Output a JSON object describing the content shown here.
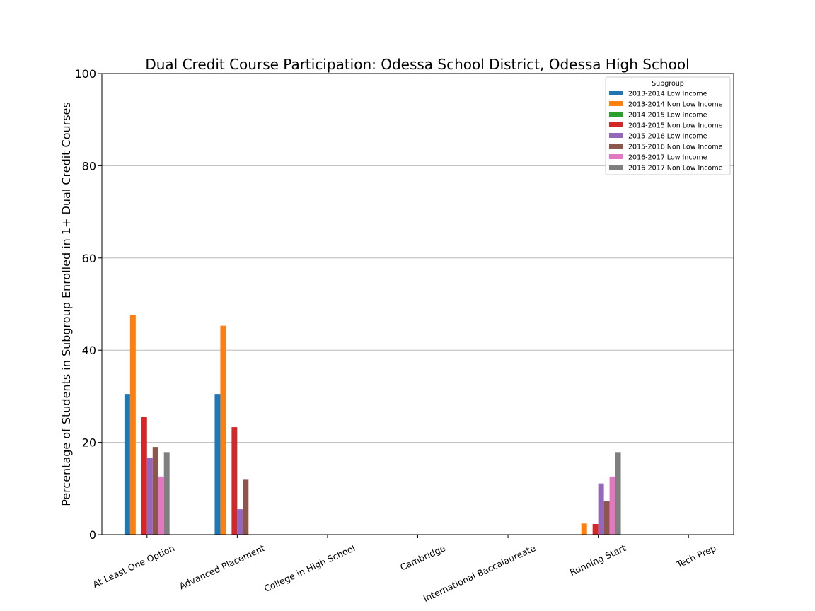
{
  "chart_data": {
    "type": "bar",
    "title": "Dual Credit Course Participation: Odessa School District, Odessa High School",
    "xlabel": "",
    "ylabel": "Percentage of Students in Subgroup Enrolled in 1+ Dual Credit Courses",
    "ylim": [
      0,
      100
    ],
    "yticks": [
      0,
      20,
      40,
      60,
      80,
      100
    ],
    "grid": "y",
    "legend_title": "Subgroup",
    "legend_position": "top-right",
    "categories": [
      "At Least One Option",
      "Advanced Placement",
      "College in High School",
      "Cambridge",
      "International Baccalaureate",
      "Running Start",
      "Tech Prep"
    ],
    "series": [
      {
        "name": "2013-2014 Low Income",
        "color": "#1f77b4",
        "values": [
          30.5,
          30.5,
          0,
          0,
          0,
          0,
          0
        ]
      },
      {
        "name": "2013-2014 Non Low Income",
        "color": "#ff7f0e",
        "values": [
          47.7,
          45.3,
          0,
          0,
          0,
          2.4,
          0
        ]
      },
      {
        "name": "2014-2015 Low Income",
        "color": "#2ca02c",
        "values": [
          0,
          0,
          0,
          0,
          0,
          0,
          0
        ]
      },
      {
        "name": "2014-2015 Non Low Income",
        "color": "#d62728",
        "values": [
          25.6,
          23.3,
          0,
          0,
          0,
          2.3,
          0
        ]
      },
      {
        "name": "2015-2016 Low Income",
        "color": "#9467bd",
        "values": [
          16.7,
          5.5,
          0,
          0,
          0,
          11.1,
          0
        ]
      },
      {
        "name": "2015-2016 Non Low Income",
        "color": "#8c564b",
        "values": [
          19.0,
          11.9,
          0,
          0,
          0,
          7.2,
          0
        ]
      },
      {
        "name": "2016-2017 Low Income",
        "color": "#e377c2",
        "values": [
          12.6,
          0,
          0,
          0,
          0,
          12.6,
          0
        ]
      },
      {
        "name": "2016-2017 Non Low Income",
        "color": "#7f7f7f",
        "values": [
          17.9,
          0,
          0,
          0,
          0,
          17.9,
          0
        ]
      }
    ]
  }
}
